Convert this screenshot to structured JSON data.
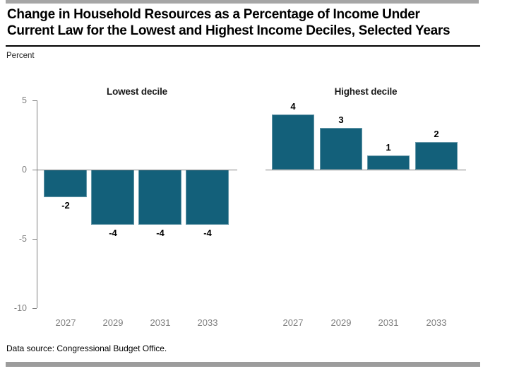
{
  "page": {
    "title_line1": "Change in Household Resources as a Percentage of Income Under",
    "title_line2": "Current Law for the Lowest and Highest Income Deciles, Selected Years",
    "unit_label": "Percent",
    "source": "Data source: Congressional Budget Office."
  },
  "colors": {
    "bar": "#13607a",
    "axis_line": "#808080",
    "tick_label": "#7f7f7f",
    "data_label": "#000000",
    "top_rule": "#a6a6a6",
    "bottom_rule": "#9c9c9c",
    "title_rule": "#000000"
  },
  "chart_data": [
    {
      "type": "bar",
      "title": "Lowest decile",
      "categories": [
        "2027",
        "2029",
        "2031",
        "2033"
      ],
      "values": [
        -2,
        -4,
        -4,
        -4
      ],
      "data_labels": [
        "-2",
        "-4",
        "-4",
        "-4"
      ],
      "ylabel": "Percent",
      "ylim": [
        -10,
        5
      ],
      "yticks": [
        5,
        0,
        -5,
        -10
      ],
      "grid": false,
      "legend_position": "none"
    },
    {
      "type": "bar",
      "title": "Highest decile",
      "categories": [
        "2027",
        "2029",
        "2031",
        "2033"
      ],
      "values": [
        4,
        3,
        1,
        2
      ],
      "data_labels": [
        "4",
        "3",
        "1",
        "2"
      ],
      "ylabel": "Percent",
      "ylim": [
        -10,
        5
      ],
      "yticks": [
        5,
        0,
        -5,
        -10
      ],
      "grid": false,
      "legend_position": "none"
    }
  ]
}
